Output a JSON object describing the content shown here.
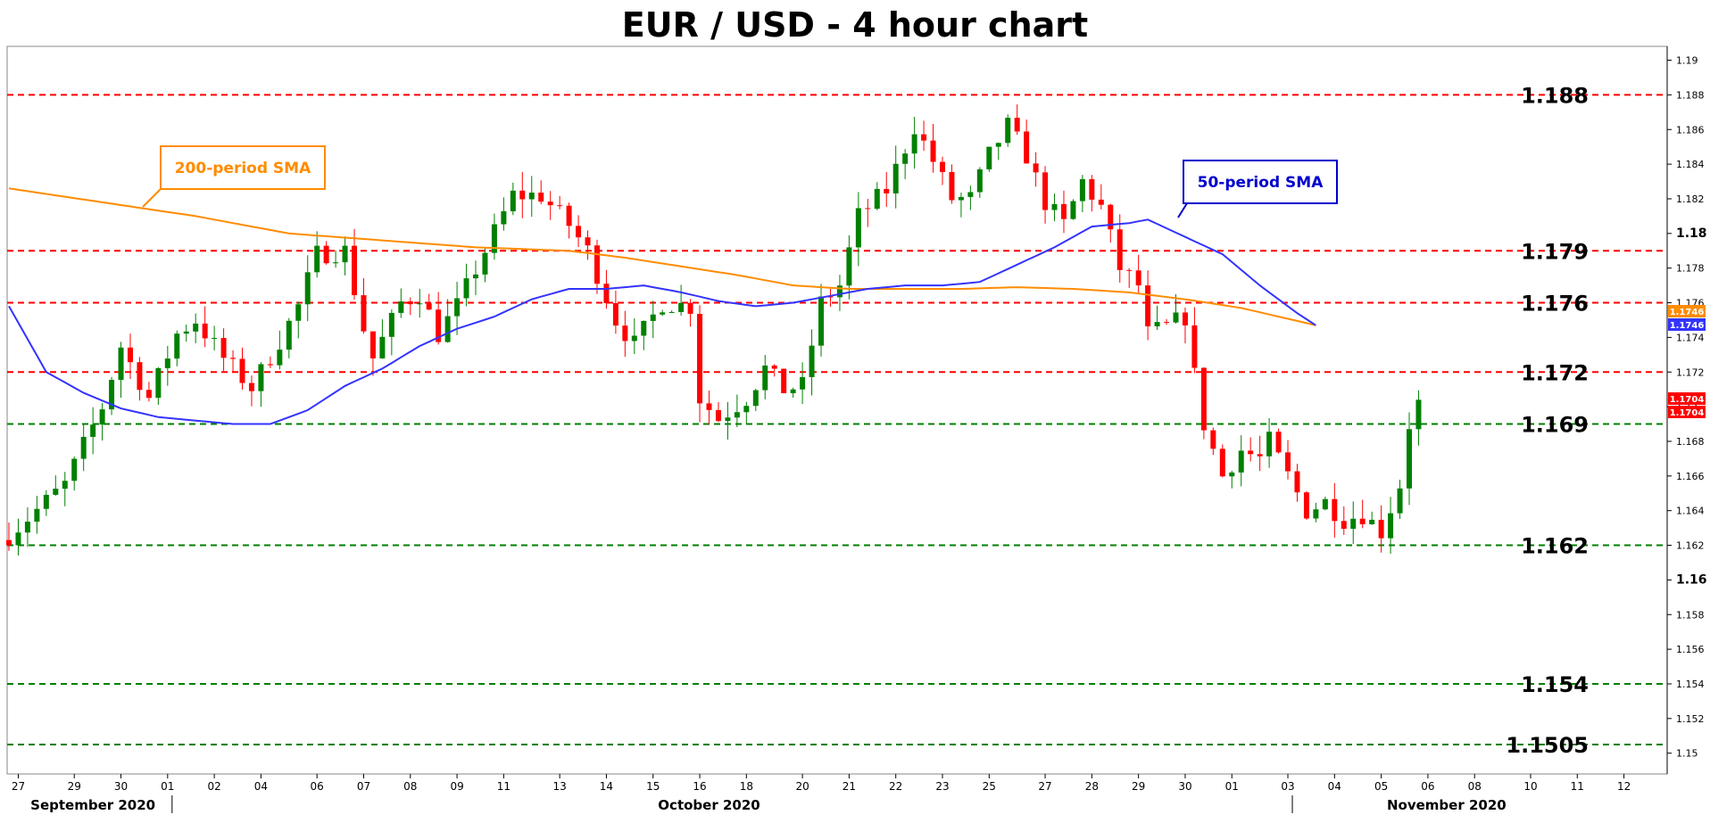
{
  "chart_data": {
    "type": "candlestick",
    "title": "EUR / USD - 4 hour chart",
    "y_ticks": [
      "1.15",
      "1.152",
      "1.154",
      "1.156",
      "1.158",
      "1.16",
      "1.162",
      "1.164",
      "1.166",
      "1.168",
      "1.17",
      "1.172",
      "1.174",
      "1.176",
      "1.178",
      "1.18",
      "1.182",
      "1.184",
      "1.186",
      "1.188",
      "1.19"
    ],
    "ylim": [
      1.1488,
      1.1908
    ],
    "x_ticks": [
      {
        "label": "27",
        "i": 1
      },
      {
        "label": "29",
        "i": 7
      },
      {
        "label": "30",
        "i": 12
      },
      {
        "label": "01",
        "i": 17
      },
      {
        "label": "02",
        "i": 22
      },
      {
        "label": "04",
        "i": 27
      },
      {
        "label": "06",
        "i": 33
      },
      {
        "label": "07",
        "i": 38
      },
      {
        "label": "08",
        "i": 43
      },
      {
        "label": "09",
        "i": 48
      },
      {
        "label": "11",
        "i": 53
      },
      {
        "label": "13",
        "i": 59
      },
      {
        "label": "14",
        "i": 64
      },
      {
        "label": "15",
        "i": 69
      },
      {
        "label": "16",
        "i": 74
      },
      {
        "label": "18",
        "i": 79
      },
      {
        "label": "20",
        "i": 85
      },
      {
        "label": "21",
        "i": 90
      },
      {
        "label": "22",
        "i": 95
      },
      {
        "label": "23",
        "i": 100
      },
      {
        "label": "25",
        "i": 105
      },
      {
        "label": "27",
        "i": 111
      },
      {
        "label": "28",
        "i": 116
      },
      {
        "label": "29",
        "i": 121
      },
      {
        "label": "30",
        "i": 126
      },
      {
        "label": "01",
        "i": 131
      },
      {
        "label": "03",
        "i": 137
      },
      {
        "label": "04",
        "i": 142
      },
      {
        "label": "05",
        "i": 147
      },
      {
        "label": "06",
        "i": 152
      },
      {
        "label": "08",
        "i": 157
      },
      {
        "label": "10",
        "i": 163
      },
      {
        "label": "11",
        "i": 168
      },
      {
        "label": "12",
        "i": 173
      }
    ],
    "months": [
      {
        "label": "September 2020",
        "i": 9
      },
      {
        "label": "October 2020",
        "i": 75
      },
      {
        "label": "November 2020",
        "i": 154
      }
    ],
    "levels": [
      {
        "label": "1.188",
        "value": 1.188,
        "color": "#ff0000"
      },
      {
        "label": "1.179",
        "value": 1.179,
        "color": "#ff0000"
      },
      {
        "label": "1.176",
        "value": 1.176,
        "color": "#ff0000"
      },
      {
        "label": "1.172",
        "value": 1.172,
        "color": "#ff0000"
      },
      {
        "label": "1.169",
        "value": 1.169,
        "color": "#008000"
      },
      {
        "label": "1.162",
        "value": 1.162,
        "color": "#008000"
      },
      {
        "label": "1.154",
        "value": 1.154,
        "color": "#008000"
      },
      {
        "label": "1.1505",
        "value": 1.1505,
        "color": "#008000"
      }
    ],
    "annotations": [
      {
        "label": "200-period SMA",
        "color": "#ff8c00"
      },
      {
        "label": "50-period SMA",
        "color": "#0000cc"
      }
    ],
    "price_tags": [
      {
        "label": "1.1746",
        "color": "#ff8c00"
      },
      {
        "label": "1.1746",
        "color": "#3333ff"
      },
      {
        "label": "1.1704",
        "color": "#ff0000"
      },
      {
        "label": "1.1704",
        "color": "#ff0000"
      }
    ],
    "close_anchors": [
      [
        0,
        1.1626
      ],
      [
        6,
        1.1655
      ],
      [
        10,
        1.17
      ],
      [
        12,
        1.1735
      ],
      [
        15,
        1.1705
      ],
      [
        18,
        1.1742
      ],
      [
        20,
        1.175
      ],
      [
        23,
        1.1728
      ],
      [
        26,
        1.1711
      ],
      [
        29,
        1.1738
      ],
      [
        31,
        1.1758
      ],
      [
        33,
        1.1788
      ],
      [
        36,
        1.179
      ],
      [
        38,
        1.1745
      ],
      [
        39,
        1.1728
      ],
      [
        42,
        1.176
      ],
      [
        44,
        1.1765
      ],
      [
        46,
        1.1742
      ],
      [
        48,
        1.1758
      ],
      [
        51,
        1.179
      ],
      [
        54,
        1.1822
      ],
      [
        57,
        1.1822
      ],
      [
        60,
        1.1805
      ],
      [
        62,
        1.179
      ],
      [
        65,
        1.175
      ],
      [
        67,
        1.1736
      ],
      [
        70,
        1.176
      ],
      [
        73,
        1.1758
      ],
      [
        74,
        1.1705
      ],
      [
        76,
        1.1693
      ],
      [
        79,
        1.1705
      ],
      [
        81,
        1.1722
      ],
      [
        83,
        1.171
      ],
      [
        85,
        1.1712
      ],
      [
        87,
        1.176
      ],
      [
        89,
        1.177
      ],
      [
        91,
        1.181
      ],
      [
        94,
        1.1825
      ],
      [
        97,
        1.1862
      ],
      [
        99,
        1.1842
      ],
      [
        101,
        1.182
      ],
      [
        103,
        1.182
      ],
      [
        105,
        1.1845
      ],
      [
        107,
        1.1862
      ],
      [
        109,
        1.1845
      ],
      [
        111,
        1.1818
      ],
      [
        113,
        1.1805
      ],
      [
        115,
        1.183
      ],
      [
        117,
        1.1815
      ],
      [
        119,
        1.178
      ],
      [
        121,
        1.177
      ],
      [
        122,
        1.1742
      ],
      [
        124,
        1.1746
      ],
      [
        126,
        1.1752
      ],
      [
        127,
        1.1718
      ],
      [
        128,
        1.169
      ],
      [
        130,
        1.166
      ],
      [
        132,
        1.1675
      ],
      [
        134,
        1.167
      ],
      [
        135,
        1.168
      ],
      [
        137,
        1.166
      ],
      [
        139,
        1.164
      ],
      [
        141,
        1.1645
      ],
      [
        143,
        1.1635
      ],
      [
        145,
        1.1638
      ],
      [
        147,
        1.1628
      ],
      [
        149,
        1.1655
      ],
      [
        150,
        1.169
      ],
      [
        151,
        1.1704
      ]
    ],
    "sma50_anchors": [
      [
        0,
        1.1758
      ],
      [
        4,
        1.172
      ],
      [
        8,
        1.1708
      ],
      [
        12,
        1.1699
      ],
      [
        16,
        1.1694
      ],
      [
        20,
        1.1692
      ],
      [
        24,
        1.169
      ],
      [
        28,
        1.169
      ],
      [
        32,
        1.1698
      ],
      [
        36,
        1.1712
      ],
      [
        40,
        1.1722
      ],
      [
        44,
        1.1735
      ],
      [
        48,
        1.1745
      ],
      [
        52,
        1.1752
      ],
      [
        56,
        1.1762
      ],
      [
        60,
        1.1768
      ],
      [
        64,
        1.1768
      ],
      [
        68,
        1.177
      ],
      [
        72,
        1.1766
      ],
      [
        76,
        1.1761
      ],
      [
        80,
        1.1758
      ],
      [
        84,
        1.176
      ],
      [
        88,
        1.1764
      ],
      [
        92,
        1.1768
      ],
      [
        96,
        1.177
      ],
      [
        100,
        1.177
      ],
      [
        104,
        1.1772
      ],
      [
        108,
        1.1782
      ],
      [
        112,
        1.1792
      ],
      [
        116,
        1.1804
      ],
      [
        120,
        1.1806
      ],
      [
        122,
        1.1808
      ],
      [
        126,
        1.1798
      ],
      [
        130,
        1.1788
      ],
      [
        134,
        1.177
      ],
      [
        138,
        1.1754
      ],
      [
        140,
        1.1747
      ]
    ],
    "sma200_anchors": [
      [
        0,
        1.1826
      ],
      [
        10,
        1.1818
      ],
      [
        20,
        1.181
      ],
      [
        30,
        1.18
      ],
      [
        40,
        1.1796
      ],
      [
        50,
        1.1792
      ],
      [
        60,
        1.179
      ],
      [
        66,
        1.1786
      ],
      [
        72,
        1.1781
      ],
      [
        78,
        1.1776
      ],
      [
        84,
        1.177
      ],
      [
        90,
        1.1768
      ],
      [
        96,
        1.1768
      ],
      [
        102,
        1.1768
      ],
      [
        108,
        1.1769
      ],
      [
        114,
        1.1768
      ],
      [
        120,
        1.1766
      ],
      [
        126,
        1.1762
      ],
      [
        132,
        1.1757
      ],
      [
        136,
        1.1752
      ],
      [
        140,
        1.1747
      ]
    ]
  }
}
